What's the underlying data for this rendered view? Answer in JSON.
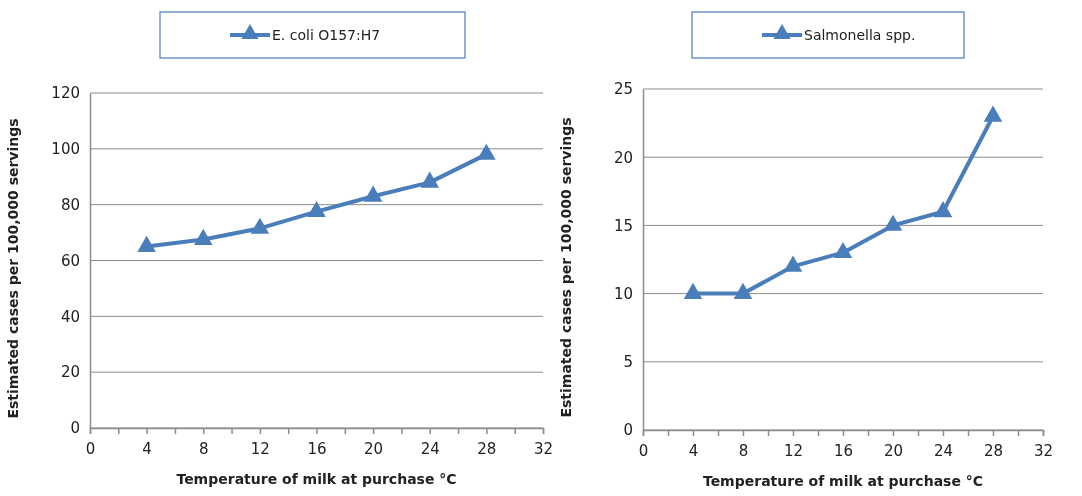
{
  "chart_data": [
    {
      "type": "line",
      "xlabel": "Temperature of milk at purchase °C",
      "ylabel": "Estimated cases per 100,000 servings",
      "x": [
        4,
        8,
        12,
        16,
        20,
        24,
        28
      ],
      "series": [
        {
          "name": "E. coli O157:H7",
          "color": "#4a7ebb",
          "values": [
            65,
            67.5,
            71.5,
            77.5,
            83,
            88,
            98
          ]
        }
      ],
      "xlim": [
        0,
        32
      ],
      "xticks": [
        0,
        {
          "value": 2,
          "label": null
        },
        4,
        {
          "value": 6,
          "label": null
        },
        8,
        {
          "value": 10,
          "label": null
        },
        12,
        {
          "value": 14,
          "label": null
        },
        16,
        {
          "value": 18,
          "label": null
        },
        20,
        {
          "value": 22,
          "label": null
        },
        24,
        {
          "value": 26,
          "label": null
        },
        28,
        {
          "value": 30,
          "label": null
        },
        32
      ],
      "ylim": [
        0,
        120
      ],
      "yticks": [
        0,
        20,
        40,
        60,
        80,
        100,
        120
      ],
      "grid": "y",
      "legend": "top",
      "marker": "triangle",
      "line_style": "solid"
    },
    {
      "type": "line",
      "xlabel": "Temperature of milk at purchase °C",
      "ylabel": "Estimated cases per 100,000 servings",
      "x": [
        4,
        8,
        12,
        16,
        20,
        24,
        28
      ],
      "series": [
        {
          "name": "Salmonella spp.",
          "color": "#4a7ebb",
          "values": [
            10,
            10,
            12,
            13,
            15,
            16,
            23
          ]
        }
      ],
      "xlim": [
        0,
        32
      ],
      "xticks": [
        0,
        {
          "value": 2,
          "label": null
        },
        4,
        {
          "value": 6,
          "label": null
        },
        8,
        {
          "value": 10,
          "label": null
        },
        12,
        {
          "value": 14,
          "label": null
        },
        16,
        {
          "value": 18,
          "label": null
        },
        20,
        {
          "value": 22,
          "label": null
        },
        24,
        {
          "value": 26,
          "label": null
        },
        28,
        {
          "value": 30,
          "label": null
        },
        32
      ],
      "ylim": [
        0,
        25
      ],
      "yticks": [
        0,
        5,
        10,
        15,
        20,
        25
      ],
      "grid": "y",
      "legend": "top",
      "marker": "triangle",
      "line_style": "solid"
    }
  ]
}
